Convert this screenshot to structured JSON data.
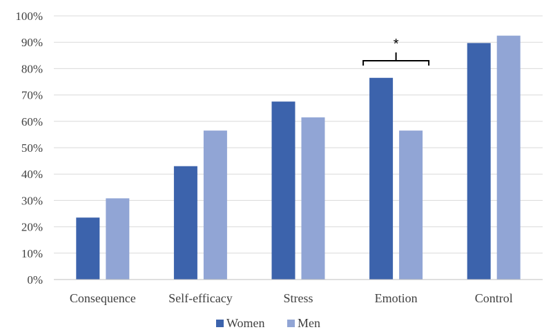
{
  "chart_data": {
    "type": "bar",
    "title": "",
    "xlabel": "",
    "ylabel": "",
    "categories": [
      "Consequence",
      "Self-efficacy",
      "Stress",
      "Emotion",
      "Control"
    ],
    "series": [
      {
        "name": "Women",
        "values": [
          23.5,
          43,
          67.5,
          76.5,
          89.7
        ],
        "color": "#3c63ac"
      },
      {
        "name": "Men",
        "values": [
          30.8,
          56.5,
          61.5,
          56.5,
          92.5
        ],
        "color": "#91a5d5"
      }
    ],
    "ylim": [
      0,
      100
    ],
    "yticks": [
      0,
      10,
      20,
      30,
      40,
      50,
      60,
      70,
      80,
      90,
      100
    ],
    "ytick_labels": [
      "0%",
      "10%",
      "20%",
      "30%",
      "40%",
      "50%",
      "60%",
      "70%",
      "80%",
      "90%",
      "100%"
    ],
    "grid": true,
    "legend_position": "bottom",
    "annotations": [
      {
        "text": "*",
        "category": "Emotion",
        "meaning": "significant difference"
      }
    ]
  }
}
